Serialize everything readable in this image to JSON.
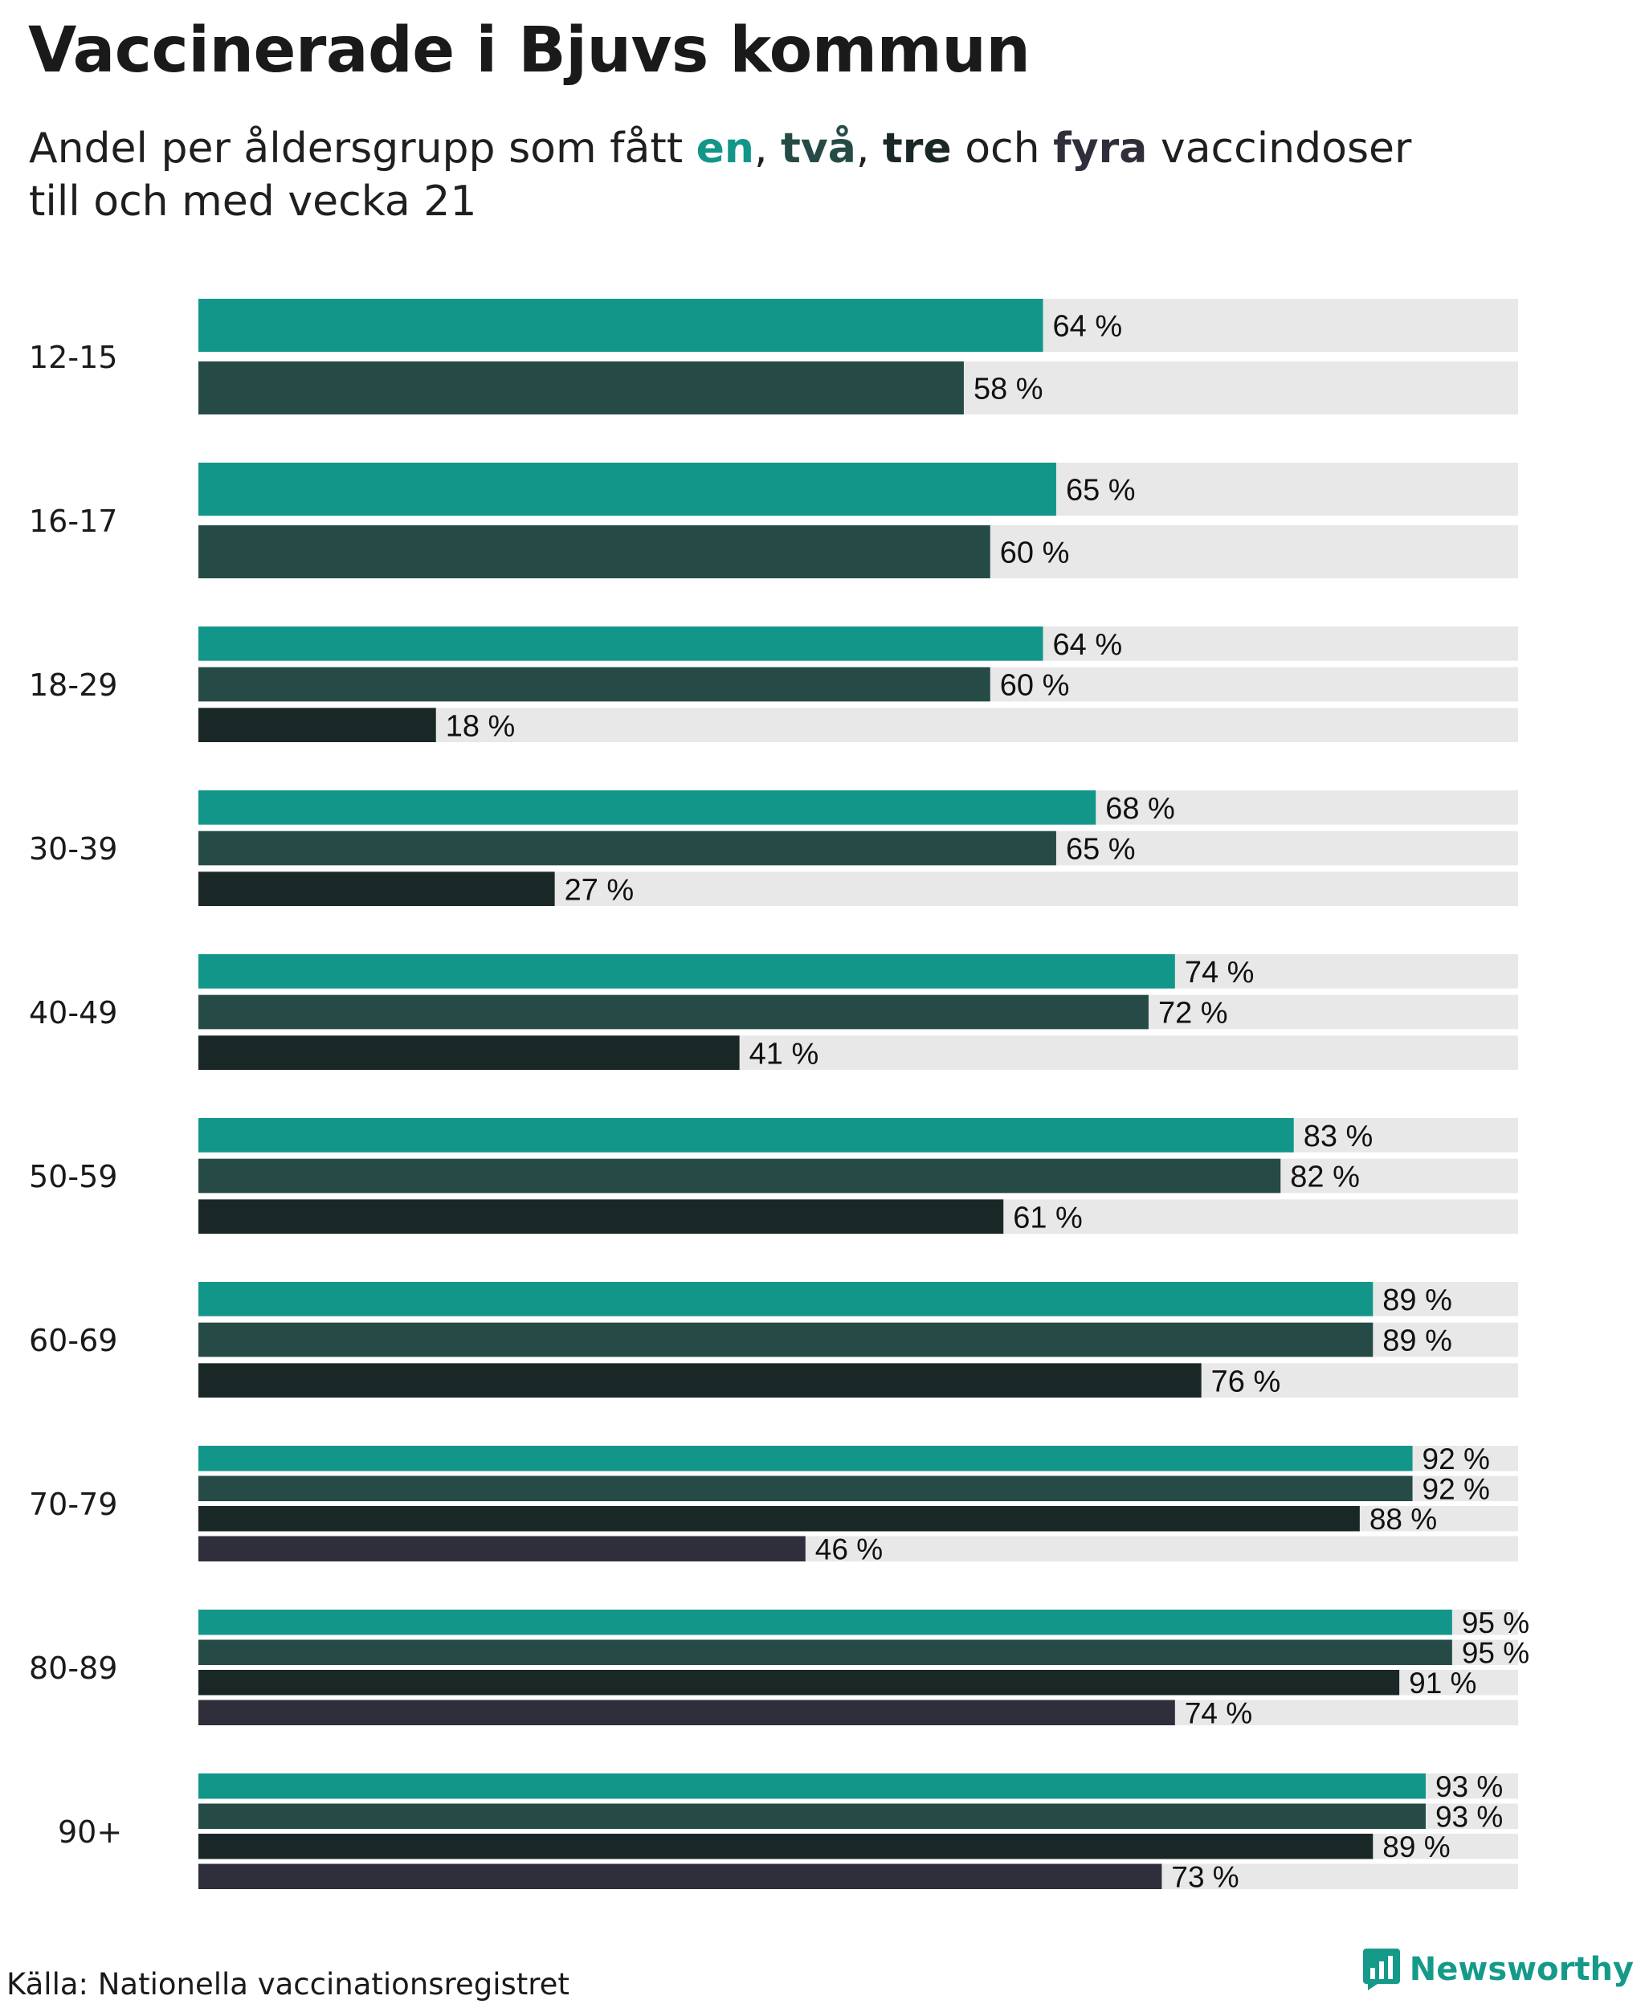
{
  "header": {
    "title": "Vaccinerade i Bjuvs kommun",
    "subtitle_part1": "Andel per åldersgrupp som fått ",
    "subtitle_en": "en",
    "subtitle_sep1": ", ",
    "subtitle_tva": "två",
    "subtitle_sep2": ", ",
    "subtitle_tre": "tre",
    "subtitle_och": " och ",
    "subtitle_fyra": "fyra",
    "subtitle_part2": " vaccindoser",
    "subtitle_line2": "till och med vecka 21"
  },
  "footer": {
    "source": "Källa: Nationella vaccinationsregistret",
    "brand": "Newsworthy",
    "brand_icon": "newsworthy-logo-icon"
  },
  "colors": {
    "en": "#13968a",
    "tva": "#264b47",
    "tre": "#192826",
    "fyra": "#2f2f3b",
    "track": "#e8e8e8",
    "brand": "#159a8a"
  },
  "chart_data": {
    "type": "bar",
    "orientation": "horizontal",
    "value_suffix": " %",
    "xlim": [
      0,
      100
    ],
    "categories": [
      "12-15",
      "16-17",
      "18-29",
      "30-39",
      "40-49",
      "50-59",
      "60-69",
      "70-79",
      "80-89",
      "90+"
    ],
    "series": [
      {
        "key": "en",
        "values": [
          64,
          65,
          64,
          68,
          74,
          83,
          89,
          92,
          95,
          93
        ]
      },
      {
        "key": "tva",
        "values": [
          58,
          60,
          60,
          65,
          72,
          82,
          89,
          92,
          95,
          93
        ]
      },
      {
        "key": "tre",
        "values": [
          null,
          null,
          18,
          27,
          41,
          61,
          76,
          88,
          91,
          89
        ]
      },
      {
        "key": "fyra",
        "values": [
          null,
          null,
          null,
          null,
          null,
          null,
          null,
          46,
          74,
          73
        ]
      }
    ]
  }
}
